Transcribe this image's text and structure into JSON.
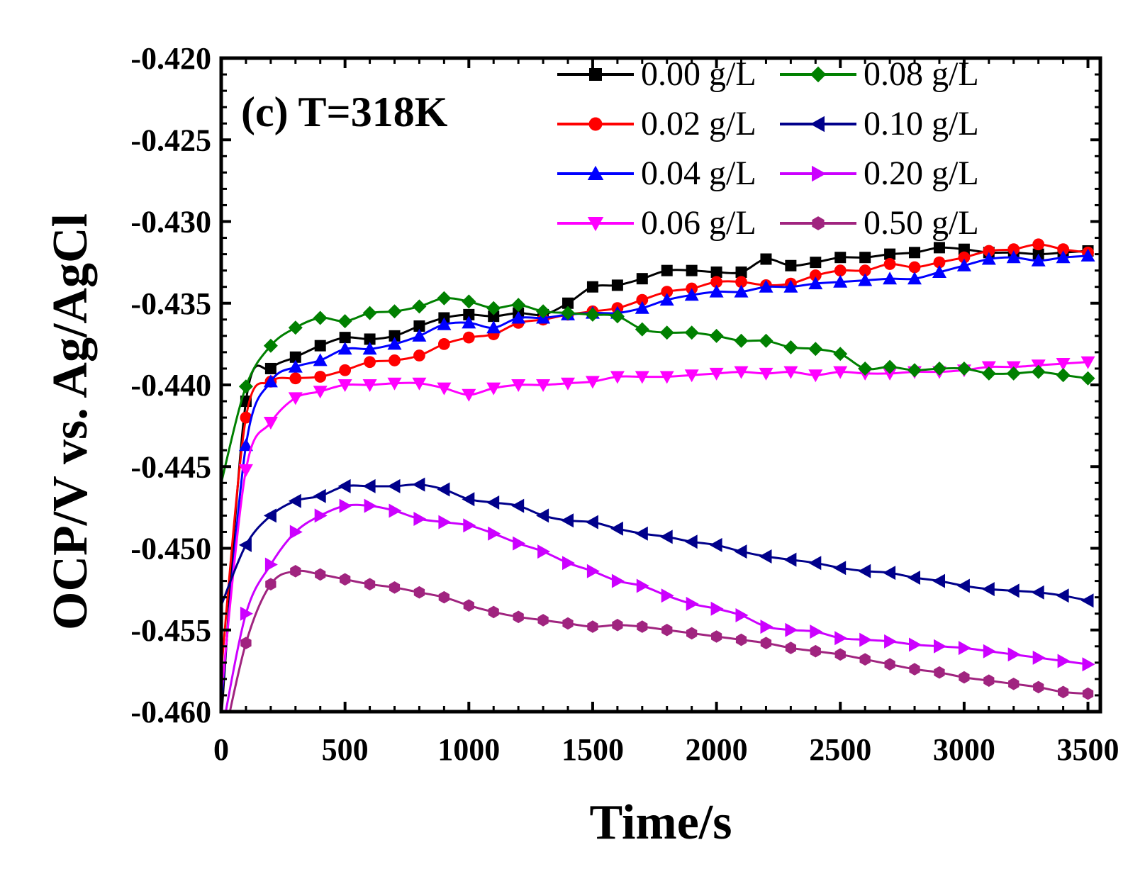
{
  "chart_data": {
    "type": "line",
    "panel_label": "(c) T=318K",
    "xlabel": "Time/s",
    "ylabel": "OCP/V vs. Ag/AgCl",
    "xlim": [
      0,
      3550
    ],
    "ylim": [
      -0.46,
      -0.42
    ],
    "xticks": [
      0,
      500,
      1000,
      1500,
      2000,
      2500,
      3000,
      3500
    ],
    "xtick_labels": [
      "0",
      "500",
      "1000",
      "1500",
      "2000",
      "2500",
      "3000",
      "3500"
    ],
    "yticks": [
      -0.42,
      -0.425,
      -0.43,
      -0.435,
      -0.44,
      -0.445,
      -0.45,
      -0.455,
      -0.46
    ],
    "ytick_labels": [
      "-0.420",
      "-0.425",
      "-0.430",
      "-0.435",
      "-0.440",
      "-0.445",
      "-0.450",
      "-0.455",
      "-0.460"
    ],
    "legend_position": "top-right",
    "x": [
      0,
      100,
      200,
      300,
      400,
      500,
      600,
      700,
      800,
      900,
      1000,
      1100,
      1200,
      1300,
      1400,
      1500,
      1600,
      1700,
      1800,
      1900,
      2000,
      2100,
      2200,
      2300,
      2400,
      2500,
      2600,
      2700,
      2800,
      2900,
      3000,
      3100,
      3200,
      3300,
      3400,
      3500
    ],
    "series": [
      {
        "name": "0.00 g/L",
        "color": "#000000",
        "marker": "square",
        "values": [
          -0.4605,
          -0.441,
          -0.439,
          -0.4383,
          -0.4376,
          -0.4371,
          -0.4372,
          -0.437,
          -0.4364,
          -0.4359,
          -0.4357,
          -0.4358,
          -0.4356,
          -0.4357,
          -0.435,
          -0.434,
          -0.4339,
          -0.4335,
          -0.433,
          -0.433,
          -0.4331,
          -0.4331,
          -0.4323,
          -0.4327,
          -0.4325,
          -0.4322,
          -0.4322,
          -0.432,
          -0.4319,
          -0.4316,
          -0.4317,
          -0.4319,
          -0.4319,
          -0.432,
          -0.4319,
          -0.4318
        ]
      },
      {
        "name": "0.02 g/L",
        "color": "#ff0000",
        "marker": "circle",
        "values": [
          -0.4575,
          -0.442,
          -0.4398,
          -0.4396,
          -0.4395,
          -0.4391,
          -0.4386,
          -0.4385,
          -0.4382,
          -0.4375,
          -0.4371,
          -0.4369,
          -0.4362,
          -0.436,
          -0.4357,
          -0.4355,
          -0.4353,
          -0.4348,
          -0.4343,
          -0.4341,
          -0.4337,
          -0.4337,
          -0.4339,
          -0.4338,
          -0.4333,
          -0.433,
          -0.433,
          -0.4326,
          -0.4328,
          -0.4325,
          -0.4322,
          -0.4318,
          -0.4317,
          -0.4314,
          -0.4317,
          -0.4319
        ]
      },
      {
        "name": "0.04 g/L",
        "color": "#0000ff",
        "marker": "triangle-up",
        "values": [
          -0.4595,
          -0.4437,
          -0.4398,
          -0.4389,
          -0.4385,
          -0.4378,
          -0.4378,
          -0.4375,
          -0.437,
          -0.4363,
          -0.4362,
          -0.4365,
          -0.4359,
          -0.4359,
          -0.4357,
          -0.4356,
          -0.4356,
          -0.4353,
          -0.4348,
          -0.4345,
          -0.4343,
          -0.4343,
          -0.434,
          -0.434,
          -0.4338,
          -0.4337,
          -0.4336,
          -0.4335,
          -0.4335,
          -0.4331,
          -0.4327,
          -0.4323,
          -0.4322,
          -0.4324,
          -0.4322,
          -0.4321
        ]
      },
      {
        "name": "0.06 g/L",
        "color": "#ff00ff",
        "marker": "triangle-down",
        "values": [
          -0.459,
          -0.4452,
          -0.4423,
          -0.4408,
          -0.4404,
          -0.44,
          -0.44,
          -0.4399,
          -0.4399,
          -0.4402,
          -0.4406,
          -0.4402,
          -0.44,
          -0.44,
          -0.4399,
          -0.4398,
          -0.4395,
          -0.4395,
          -0.4395,
          -0.4394,
          -0.4393,
          -0.4392,
          -0.4393,
          -0.4392,
          -0.4394,
          -0.4392,
          -0.4393,
          -0.4393,
          -0.4392,
          -0.4392,
          -0.4391,
          -0.4389,
          -0.4389,
          -0.4388,
          -0.4387,
          -0.4386
        ]
      },
      {
        "name": "0.08 g/L",
        "color": "#008000",
        "marker": "diamond",
        "values": [
          -0.446,
          -0.4401,
          -0.4376,
          -0.4365,
          -0.4359,
          -0.4361,
          -0.4356,
          -0.4355,
          -0.4352,
          -0.4347,
          -0.4349,
          -0.4353,
          -0.4351,
          -0.4355,
          -0.4356,
          -0.4357,
          -0.4358,
          -0.4366,
          -0.4368,
          -0.4368,
          -0.437,
          -0.4373,
          -0.4373,
          -0.4377,
          -0.4378,
          -0.4381,
          -0.439,
          -0.4389,
          -0.4391,
          -0.439,
          -0.439,
          -0.4393,
          -0.4393,
          -0.4392,
          -0.4394,
          -0.4396
        ]
      },
      {
        "name": "0.10 g/L",
        "color": "#00008b",
        "marker": "triangle-left",
        "values": [
          -0.4535,
          -0.4498,
          -0.448,
          -0.4471,
          -0.4468,
          -0.4462,
          -0.4462,
          -0.4462,
          -0.4461,
          -0.4464,
          -0.447,
          -0.4472,
          -0.4474,
          -0.448,
          -0.4483,
          -0.4484,
          -0.4488,
          -0.4491,
          -0.4493,
          -0.4496,
          -0.4498,
          -0.4502,
          -0.4505,
          -0.4507,
          -0.4509,
          -0.4512,
          -0.4514,
          -0.4515,
          -0.4518,
          -0.452,
          -0.4523,
          -0.4525,
          -0.4526,
          -0.4527,
          -0.4529,
          -0.4532
        ]
      },
      {
        "name": "0.20 g/L",
        "color": "#cc00ff",
        "marker": "triangle-right",
        "values": [
          -0.4615,
          -0.454,
          -0.451,
          -0.449,
          -0.448,
          -0.4474,
          -0.4474,
          -0.4477,
          -0.4482,
          -0.4484,
          -0.4486,
          -0.4491,
          -0.4497,
          -0.4502,
          -0.4509,
          -0.4514,
          -0.452,
          -0.4523,
          -0.4529,
          -0.4534,
          -0.4537,
          -0.4541,
          -0.4548,
          -0.455,
          -0.4551,
          -0.4555,
          -0.4556,
          -0.4557,
          -0.4559,
          -0.456,
          -0.4561,
          -0.4563,
          -0.4565,
          -0.4567,
          -0.4569,
          -0.4571
        ]
      },
      {
        "name": "0.50 g/L",
        "color": "#a0247f",
        "marker": "hexagon",
        "values": [
          -0.4625,
          -0.4558,
          -0.4522,
          -0.4514,
          -0.4516,
          -0.4519,
          -0.4522,
          -0.4524,
          -0.4527,
          -0.453,
          -0.4535,
          -0.4539,
          -0.4542,
          -0.4544,
          -0.4546,
          -0.4548,
          -0.4547,
          -0.4548,
          -0.455,
          -0.4552,
          -0.4554,
          -0.4556,
          -0.4558,
          -0.4561,
          -0.4563,
          -0.4565,
          -0.4568,
          -0.4571,
          -0.4574,
          -0.4576,
          -0.4579,
          -0.4581,
          -0.4583,
          -0.4585,
          -0.4588,
          -0.4589
        ]
      }
    ]
  }
}
